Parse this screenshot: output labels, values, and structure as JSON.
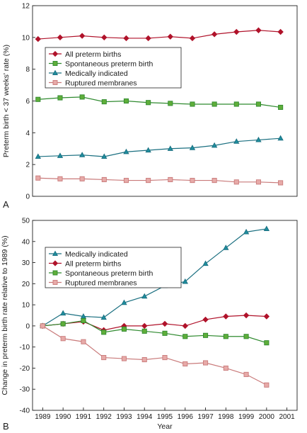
{
  "chart_data": [
    {
      "type": "line",
      "panel_label": "A",
      "x": [
        1989,
        1990,
        1991,
        1992,
        1993,
        1994,
        1995,
        1996,
        1997,
        1998,
        1999,
        2000
      ],
      "ylabel": "Preterm birth < 37 weeks' rate (%)",
      "xlabel": "",
      "ylim": [
        0,
        12
      ],
      "y_ticks": [
        "0",
        "2",
        "4",
        "6",
        "8",
        "10",
        "12"
      ],
      "grid": false,
      "legend_position": "upper-left",
      "series": [
        {
          "name": "All preterm births",
          "color": "#b0122a",
          "marker": "diamond",
          "marker_fill": "#b0122a",
          "values": [
            9.9,
            10.0,
            10.1,
            10.0,
            9.95,
            9.95,
            10.05,
            9.95,
            10.2,
            10.35,
            10.45,
            10.35
          ]
        },
        {
          "name": "Spontaneous preterm birth",
          "color": "#2f8a2f",
          "marker": "square",
          "marker_fill": "#5fae3a",
          "values": [
            6.1,
            6.2,
            6.25,
            5.95,
            6.0,
            5.9,
            5.85,
            5.8,
            5.8,
            5.8,
            5.8,
            5.6
          ]
        },
        {
          "name": "Medically indicated",
          "color": "#1a6f80",
          "marker": "triangle",
          "marker_fill": "#1f8e9e",
          "values": [
            2.5,
            2.55,
            2.6,
            2.5,
            2.8,
            2.9,
            3.0,
            3.05,
            3.2,
            3.45,
            3.55,
            3.65
          ]
        },
        {
          "name": "Ruptured membranes",
          "color": "#c97a7a",
          "marker": "square",
          "marker_fill": "#e7aaa8",
          "values": [
            1.15,
            1.1,
            1.1,
            1.05,
            1.0,
            1.0,
            1.05,
            1.0,
            1.0,
            0.9,
            0.9,
            0.85
          ]
        }
      ]
    },
    {
      "type": "line",
      "panel_label": "B",
      "x": [
        1989,
        1990,
        1991,
        1992,
        1993,
        1994,
        1995,
        1996,
        1997,
        1998,
        1999,
        2000
      ],
      "x_ticks": [
        "1989",
        "1990",
        "1991",
        "1992",
        "1993",
        "1994",
        "1995",
        "1996",
        "1997",
        "1998",
        "1999",
        "2000",
        "2001"
      ],
      "ylabel": "Change in preterm birth rate relative to 1989 (%)",
      "xlabel": "Year",
      "ylim": [
        -40,
        50
      ],
      "y_ticks": [
        "50",
        "40",
        "30",
        "20",
        "10",
        "0",
        "-10",
        "-20",
        "-30",
        "-40"
      ],
      "grid": false,
      "legend_position": "upper-left",
      "series": [
        {
          "name": "Medically indicated",
          "color": "#1a6f80",
          "marker": "triangle",
          "marker_fill": "#1f8e9e",
          "values": [
            0,
            6,
            4.5,
            4,
            11,
            14,
            19,
            21,
            29.5,
            37,
            44.5,
            46
          ]
        },
        {
          "name": "All preterm births",
          "color": "#b0122a",
          "marker": "diamond",
          "marker_fill": "#b0122a",
          "values": [
            0,
            1,
            2,
            -2,
            0,
            0,
            1,
            0,
            3,
            4.5,
            5,
            4.5
          ]
        },
        {
          "name": "Spontaneous preterm birth",
          "color": "#2f8a2f",
          "marker": "square",
          "marker_fill": "#5fae3a",
          "values": [
            0,
            1,
            2.5,
            -3,
            -1.5,
            -2.5,
            -3.5,
            -5,
            -4.5,
            -5,
            -5,
            -8
          ]
        },
        {
          "name": "Ruptured membranes",
          "color": "#c97a7a",
          "marker": "square",
          "marker_fill": "#e7aaa8",
          "values": [
            0,
            -6,
            -7.5,
            -15,
            -15.5,
            -16,
            -15,
            -18,
            -17.5,
            -20,
            -23,
            -28
          ]
        }
      ]
    }
  ]
}
